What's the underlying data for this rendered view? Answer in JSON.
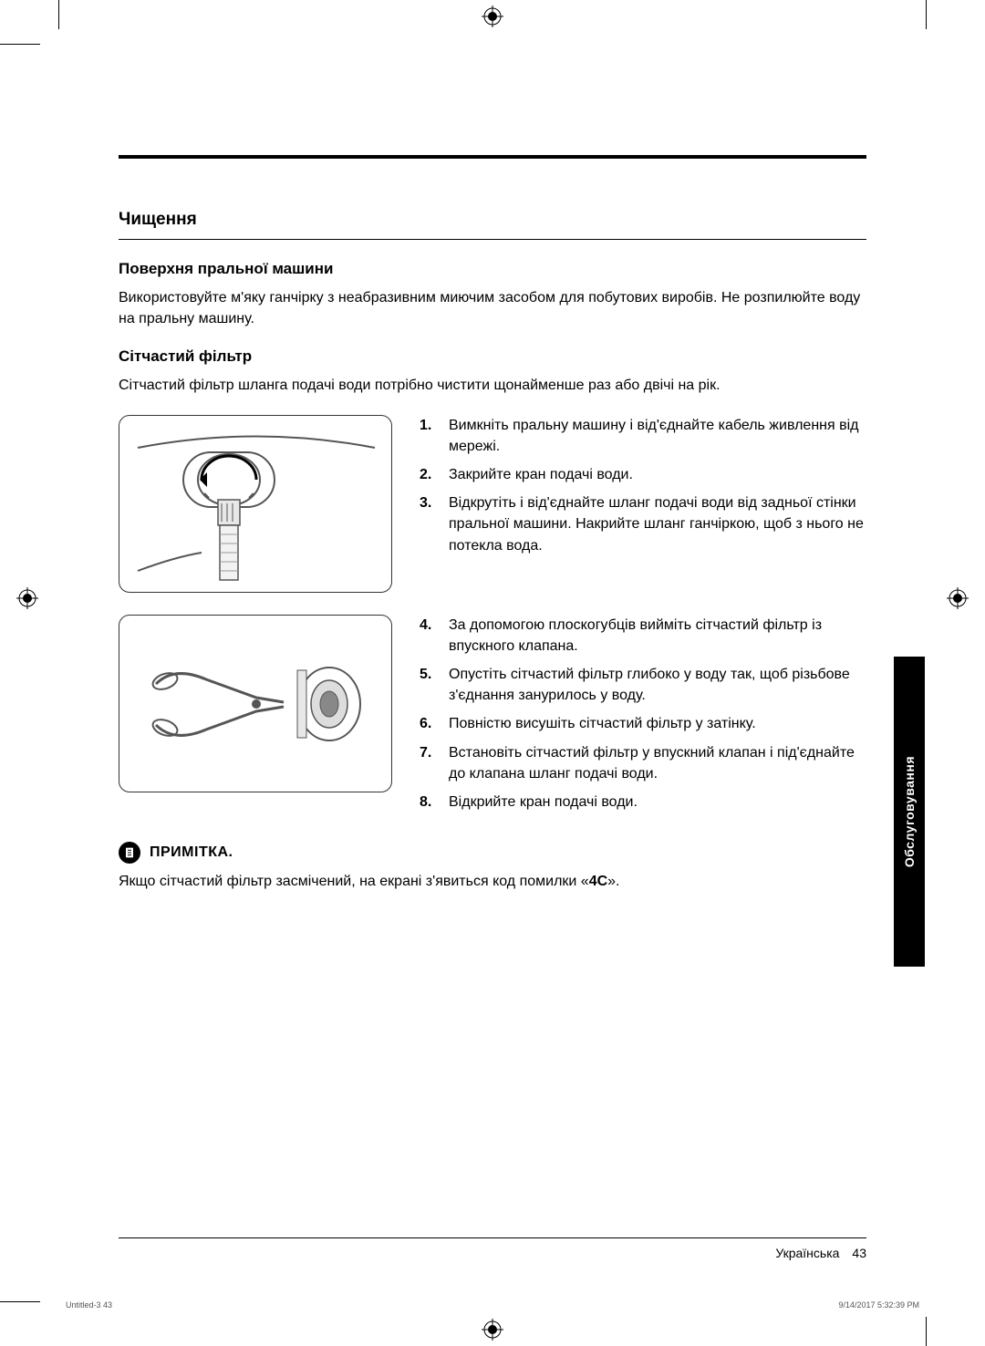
{
  "heading_main": "Чищення",
  "section_surface": {
    "title": "Поверхня пральної машини",
    "text": "Використовуйте м'яку ганчірку з неабразивним миючим засобом для побутових виробів. Не розпилюйте воду на пральну машину."
  },
  "section_filter": {
    "title": "Сітчастий фільтр",
    "intro": "Сітчастий фільтр шланга подачі води потрібно чистити щонайменше раз або двічі на рік.",
    "steps_a": [
      {
        "n": "1.",
        "t": "Вимкніть пральну машину і від'єднайте кабель живлення від мережі."
      },
      {
        "n": "2.",
        "t": "Закрийте кран подачі води."
      },
      {
        "n": "3.",
        "t": "Відкрутіть і від'єднайте шланг подачі води від задньої стінки пральної машини. Накрийте шланг ганчіркою, щоб з нього не потекла вода."
      }
    ],
    "steps_b": [
      {
        "n": "4.",
        "t": "За допомогою плоскогубців вийміть сітчастий фільтр із впускного клапана."
      },
      {
        "n": "5.",
        "t": "Опустіть сітчастий фільтр глибоко у воду так, щоб різьбове з'єднання занурилось у воду."
      },
      {
        "n": "6.",
        "t": "Повністю висушіть сітчастий фільтр у затінку."
      },
      {
        "n": "7.",
        "t": "Встановіть сітчастий фільтр у впускний клапан і під'єднайте до клапана шланг подачі води."
      },
      {
        "n": "8.",
        "t": "Відкрийте кран подачі води."
      }
    ]
  },
  "note": {
    "label": "ПРИМІТКА.",
    "text_pre": "Якщо сітчастий фільтр засмічений, на екрані з'явиться код помилки «",
    "code": "4C",
    "text_post": "»."
  },
  "side_tab": "Обслуговування",
  "footer_lang": "Українська",
  "footer_page": "43",
  "meta": {
    "left": "Untitled-3   43",
    "right": "9/14/2017   5:32:39 PM"
  },
  "colors": {
    "text": "#000000",
    "bg": "#ffffff",
    "tab_bg": "#000000",
    "tab_fg": "#ffffff",
    "meta": "#555555"
  }
}
